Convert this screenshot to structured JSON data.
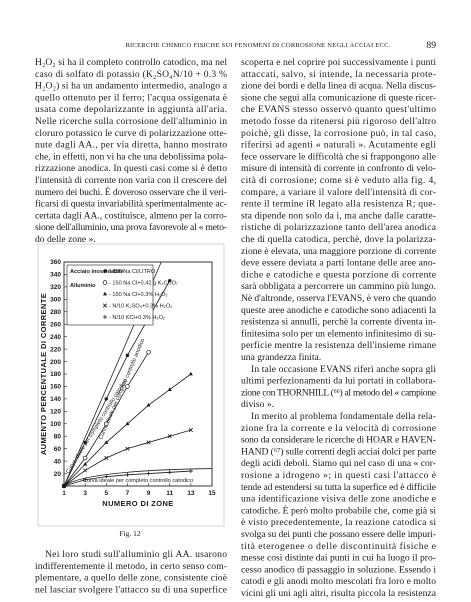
{
  "header": {
    "title": "RICERCHE CHIMICO FISICHE SUI FENOMENI DI CORROSIONE NEGLI ACCIAI ECC.",
    "page_number": "89"
  },
  "left_column": {
    "paragraph_top": [
      "H₂O₂ si ha il completo controllo catodico, ma nel",
      "caso di solfato di potassio (K₂SO₄N/10 + 0.3 %",
      "H₂O₂) si ha un andamento intermedio, analogo a",
      "quello ottenuto per il ferro; l'acqua ossigenata è",
      "usata come depolarizzante in aggiunta all'aria.",
      "Nelle ricerche sulla corrosione dell'alluminio in",
      "cloruro potassico le curve di polarizzazione otte-",
      "nute dagli AA., per via diretta, hanno mostrato",
      "che, in effetti, non vi ha che una debolissima pola-",
      "rizzazione anodica. In questi casi come si è detto",
      "l'intensità di corrente non varia con il crescere del",
      "numero dei buchi. È doveroso osservare che il veri-",
      "ficarsi di questa invariabilità sperimentalmente ac-",
      "certata dagli AA., costituisce, almeno per la corro-",
      "sione dell'alluminio, una prova favorevole al « meto-",
      "do delle zone »."
    ],
    "figure_caption": "Fig. 12",
    "paragraph_bottom": [
      "Nei loro studi sull'alluminio gli AA. usarono",
      "indifferentemente il metodo, in certo senso com-",
      "plementare, a quello delle zone, consistente cioè",
      "nel lasciar svolgere l'attacco su di una superfice"
    ]
  },
  "right_column": {
    "paragraphs": [
      [
        "scoperta e nel coprire poi successivamente i punti",
        "attaccati, salvo, si intende, la necessaria prote-",
        "zione dei bordi e della linea di acqua. Nella discus-",
        "sione che seguì alla comunicazione di queste ricer-",
        "che EVANS stesso osservò quanto quest'ultimo",
        "metodo fosse da ritenersi più rigoroso dell'altro",
        "poichè, gli disse, la corrosione può, in tal caso,",
        "riferirsi ad agenti « naturali ». Acutamente egli",
        "fece osservare le difficoltà che si frappongono alle",
        "misure di intensità di corrente in confronto di velo-",
        "cità di corrosione; come si è veduto alla fig. 4,",
        "compare, a variare il valore dell'intensità di cor-",
        "rente il termine iR legato alla resistenza R; que-",
        "sta dipende non solo da i, ma anche dalle caratte-",
        "ristiche di polarizzazione tanto dell'area anodica",
        "che di quella catodica, perchè, dove la polarizza-",
        "zione è elevata, una maggiore porzione di corrente",
        "deve essere deviata a parti lontane delle aree ano-",
        "diche e catodiche e questa porzione di corrente",
        "sarà obbligata a percorrere un cammino più lungo.",
        "Nè d'altronde, osserva l'EVANS, è vero che quando",
        "queste aree anodiche e catodiche sono adiacenti la",
        "resistenza si annulli, perchè la corrente diventa in-",
        "finitesima solo per un elemento infinitesimo di su-",
        "perficie mentre la resistenza dell'insieme rimane",
        "una grandezza finita."
      ],
      [
        "In tale occasione EVANS riferì anche sopra gli",
        "ultimi perfezionamenti da lui portati in collabora-",
        "zione con THORNHILL (⁶⁶) al metodo del « campione",
        "diviso »."
      ],
      [
        "In merito al problema fondamentale della rela-",
        "zione fra la corrente e la velocità di corrosione",
        "sono da considerare le ricerche di HOAR e HAVEN-",
        "HAND (⁶⁷) sulle correnti degli acciai dolci per parte",
        "degli acidi deboli. Siamo qui nel caso di una « cor-",
        "rosione a idrogeno »; in questi casi l'attacco è",
        "tende ad estendersi su tutta la superfice ed è difficile",
        "una identificazione visiva delle zone anodiche e",
        "catodiche. È però molto probabile che, come già si",
        "è visto precedentemente, la reazione catodica si",
        "svolga su dei punti che possano essere delle impuri-",
        "tità eterogenee o delle discontinuità fisiche e",
        "messe così distinte dai punti in cui ha luogo il pro-",
        "cesso anodico di passaggio in soluzione. Essendo i",
        "catodi e gli anodi molto mescolati fra loro e molto",
        "vicini gli uni agli altri, risulta piccola la resistenza"
      ]
    ]
  },
  "chart_data": {
    "type": "line",
    "x_label": "NUMERO DI ZONE",
    "y_label": "AUMENTO PERCENTUALE DI CORRENTE",
    "legend_groups": [
      "Acciaio inossidabile",
      "Alluminio"
    ],
    "annotations": [
      "Curva ideale per completo controllo anodico",
      "Curva ideale per completo controllo catodico",
      "Curva ideale per completo controllo catodico"
    ],
    "x": [
      1,
      3,
      5,
      7,
      9,
      11,
      13
    ],
    "xlim": [
      1,
      15
    ],
    "xticks": [
      1,
      3,
      5,
      7,
      9,
      11,
      13,
      15
    ],
    "ylim": [
      0,
      360
    ],
    "yticks": [
      20,
      40,
      60,
      80,
      100,
      120,
      140,
      160,
      180,
      200,
      220,
      240,
      260,
      280,
      300,
      320,
      340,
      360
    ],
    "series": [
      {
        "name": "- 150 Na Cl/LITRO",
        "color": "#1a1a1a",
        "marker": "dot",
        "values": [
          0,
          70,
          140,
          210,
          270,
          330,
          null
        ]
      },
      {
        "name": "- 150 Na Cl+0.42 g K₂Cr₂O₇",
        "color": "#1a1a1a",
        "marker": "circle",
        "values": [
          0,
          45,
          100,
          160,
          215,
          null,
          null
        ]
      },
      {
        "name": "- 150 Na Cl+0.3% H₂O₂",
        "color": "#1a1a1a",
        "marker": "triangle",
        "values": [
          0,
          35,
          70,
          100,
          130,
          155,
          180
        ]
      },
      {
        "name": "- N/10 K₂SO₄+0.3% H₂O₂",
        "color": "#1a1a1a",
        "marker": "x",
        "values": [
          0,
          25,
          45,
          60,
          70,
          80,
          90
        ]
      },
      {
        "name": "- N/10 KCl+0.3% H₂O₂",
        "color": "#1a1a1a",
        "marker": "plus",
        "values": [
          0,
          10,
          15,
          18,
          20,
          22,
          24
        ]
      }
    ]
  }
}
